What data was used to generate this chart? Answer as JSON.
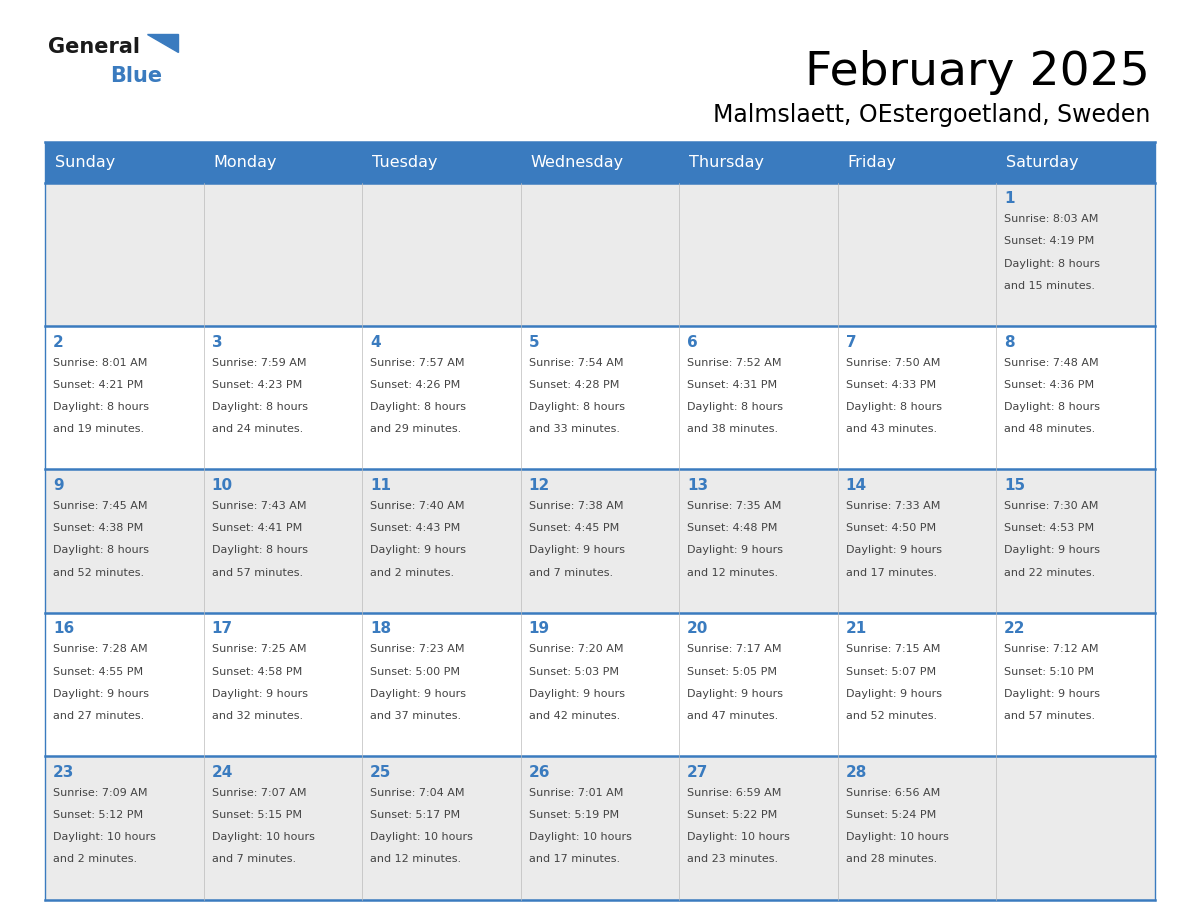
{
  "title": "February 2025",
  "subtitle": "Malmslaett, OEstergoetland, Sweden",
  "header_bg": "#3a7bbf",
  "header_text": "#ffffff",
  "days_of_week": [
    "Sunday",
    "Monday",
    "Tuesday",
    "Wednesday",
    "Thursday",
    "Friday",
    "Saturday"
  ],
  "row_bg_odd": "#ebebeb",
  "row_bg_even": "#ffffff",
  "cell_border": "#3a7bbf",
  "day_number_color": "#3a7bbf",
  "info_text_color": "#444444",
  "calendar_data": [
    [
      null,
      null,
      null,
      null,
      null,
      null,
      {
        "day": 1,
        "sunrise": "8:03 AM",
        "sunset": "4:19 PM",
        "daylight": "8 hours and 15 minutes."
      }
    ],
    [
      {
        "day": 2,
        "sunrise": "8:01 AM",
        "sunset": "4:21 PM",
        "daylight": "8 hours and 19 minutes."
      },
      {
        "day": 3,
        "sunrise": "7:59 AM",
        "sunset": "4:23 PM",
        "daylight": "8 hours and 24 minutes."
      },
      {
        "day": 4,
        "sunrise": "7:57 AM",
        "sunset": "4:26 PM",
        "daylight": "8 hours and 29 minutes."
      },
      {
        "day": 5,
        "sunrise": "7:54 AM",
        "sunset": "4:28 PM",
        "daylight": "8 hours and 33 minutes."
      },
      {
        "day": 6,
        "sunrise": "7:52 AM",
        "sunset": "4:31 PM",
        "daylight": "8 hours and 38 minutes."
      },
      {
        "day": 7,
        "sunrise": "7:50 AM",
        "sunset": "4:33 PM",
        "daylight": "8 hours and 43 minutes."
      },
      {
        "day": 8,
        "sunrise": "7:48 AM",
        "sunset": "4:36 PM",
        "daylight": "8 hours and 48 minutes."
      }
    ],
    [
      {
        "day": 9,
        "sunrise": "7:45 AM",
        "sunset": "4:38 PM",
        "daylight": "8 hours and 52 minutes."
      },
      {
        "day": 10,
        "sunrise": "7:43 AM",
        "sunset": "4:41 PM",
        "daylight": "8 hours and 57 minutes."
      },
      {
        "day": 11,
        "sunrise": "7:40 AM",
        "sunset": "4:43 PM",
        "daylight": "9 hours and 2 minutes."
      },
      {
        "day": 12,
        "sunrise": "7:38 AM",
        "sunset": "4:45 PM",
        "daylight": "9 hours and 7 minutes."
      },
      {
        "day": 13,
        "sunrise": "7:35 AM",
        "sunset": "4:48 PM",
        "daylight": "9 hours and 12 minutes."
      },
      {
        "day": 14,
        "sunrise": "7:33 AM",
        "sunset": "4:50 PM",
        "daylight": "9 hours and 17 minutes."
      },
      {
        "day": 15,
        "sunrise": "7:30 AM",
        "sunset": "4:53 PM",
        "daylight": "9 hours and 22 minutes."
      }
    ],
    [
      {
        "day": 16,
        "sunrise": "7:28 AM",
        "sunset": "4:55 PM",
        "daylight": "9 hours and 27 minutes."
      },
      {
        "day": 17,
        "sunrise": "7:25 AM",
        "sunset": "4:58 PM",
        "daylight": "9 hours and 32 minutes."
      },
      {
        "day": 18,
        "sunrise": "7:23 AM",
        "sunset": "5:00 PM",
        "daylight": "9 hours and 37 minutes."
      },
      {
        "day": 19,
        "sunrise": "7:20 AM",
        "sunset": "5:03 PM",
        "daylight": "9 hours and 42 minutes."
      },
      {
        "day": 20,
        "sunrise": "7:17 AM",
        "sunset": "5:05 PM",
        "daylight": "9 hours and 47 minutes."
      },
      {
        "day": 21,
        "sunrise": "7:15 AM",
        "sunset": "5:07 PM",
        "daylight": "9 hours and 52 minutes."
      },
      {
        "day": 22,
        "sunrise": "7:12 AM",
        "sunset": "5:10 PM",
        "daylight": "9 hours and 57 minutes."
      }
    ],
    [
      {
        "day": 23,
        "sunrise": "7:09 AM",
        "sunset": "5:12 PM",
        "daylight": "10 hours and 2 minutes."
      },
      {
        "day": 24,
        "sunrise": "7:07 AM",
        "sunset": "5:15 PM",
        "daylight": "10 hours and 7 minutes."
      },
      {
        "day": 25,
        "sunrise": "7:04 AM",
        "sunset": "5:17 PM",
        "daylight": "10 hours and 12 minutes."
      },
      {
        "day": 26,
        "sunrise": "7:01 AM",
        "sunset": "5:19 PM",
        "daylight": "10 hours and 17 minutes."
      },
      {
        "day": 27,
        "sunrise": "6:59 AM",
        "sunset": "5:22 PM",
        "daylight": "10 hours and 23 minutes."
      },
      {
        "day": 28,
        "sunrise": "6:56 AM",
        "sunset": "5:24 PM",
        "daylight": "10 hours and 28 minutes."
      },
      null
    ]
  ]
}
